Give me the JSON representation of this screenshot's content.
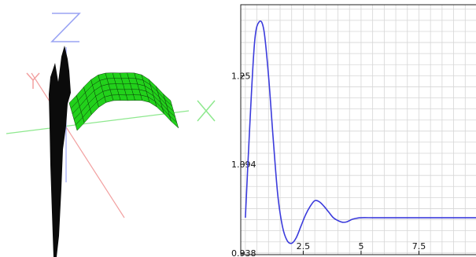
{
  "colors": {
    "axis_x": "#8ee88e",
    "axis_y": "#f2a0a0",
    "axis_z": "#9aa4f4",
    "surface_fill": "#22d11b",
    "surface_line": "#0a3f08",
    "curve": "#3b3bdc",
    "grid": "#d6d6d6",
    "frame": "#222222"
  },
  "view3d": {
    "axis_labels": {
      "x": "X",
      "y": "Y",
      "z": "Z"
    },
    "icon": "3d-surface-plot"
  },
  "chart_data": {
    "type": "line",
    "title": "",
    "xlabel": "",
    "ylabel": "",
    "xlim": [
      -0.2,
      10.0
    ],
    "ylim": [
      0.935,
      1.375
    ],
    "x_ticks": [
      {
        "value": 2.5,
        "label": "2.5"
      },
      {
        "value": 5,
        "label": "5"
      },
      {
        "value": 7.5,
        "label": "7.5"
      }
    ],
    "y_ticks": [
      {
        "value": 0.938,
        "label": "0.938"
      },
      {
        "value": 1.094,
        "label": "1.094"
      },
      {
        "value": 1.25,
        "label": "1.25"
      }
    ],
    "grid": true,
    "series": [
      {
        "x": [
          0,
          0.2,
          0.4,
          0.6,
          0.8,
          1.0,
          1.2,
          1.4,
          1.6,
          1.8,
          2.0,
          2.2,
          2.4,
          2.6,
          2.8,
          3.0,
          3.2,
          3.4,
          3.6,
          3.8,
          4.0,
          4.2,
          4.4,
          4.6,
          4.8,
          5.0,
          5.5,
          6.0,
          7.0,
          8.0,
          9.0,
          10.0
        ],
        "y": [
          1.0,
          1.17,
          1.31,
          1.345,
          1.33,
          1.25,
          1.14,
          1.04,
          0.985,
          0.96,
          0.955,
          0.965,
          0.985,
          1.005,
          1.02,
          1.03,
          1.028,
          1.02,
          1.01,
          1.0,
          0.995,
          0.992,
          0.993,
          0.997,
          0.999,
          1.0,
          1.0,
          1.0,
          1.0,
          1.0,
          1.0,
          1.0
        ]
      }
    ]
  }
}
